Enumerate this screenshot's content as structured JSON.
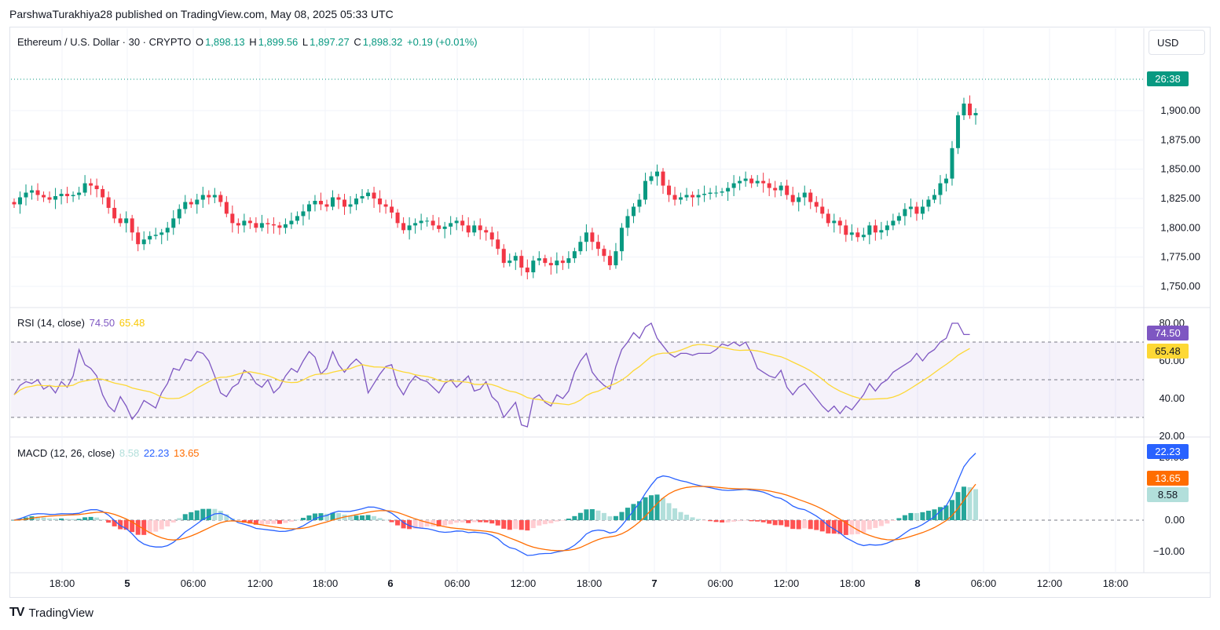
{
  "publisher": "ParshwaTurakhiya28 published on TradingView.com, May 08, 2025 05:33 UTC",
  "main_legend": {
    "symbol": "Ethereum / U.S. Dollar · 30 · CRYPTO",
    "o_label": "O",
    "o": "1,898.13",
    "h_label": "H",
    "h": "1,899.56",
    "l_label": "L",
    "l": "1,897.27",
    "c_label": "C",
    "c": "1,898.32",
    "change": "+0.19 (+0.01%)"
  },
  "currency": "USD",
  "timer_badge": "26:38",
  "price_axis": [
    "1,900.00",
    "1,875.00",
    "1,850.00",
    "1,825.00",
    "1,800.00",
    "1,775.00",
    "1,750.00"
  ],
  "rsi_legend": {
    "label": "RSI (14, close)",
    "rsi": "74.50",
    "ma": "65.48"
  },
  "rsi_axis": [
    "80.00",
    "60.00",
    "40.00",
    "20.00"
  ],
  "rsi_badges": {
    "rsi": "74.50",
    "ma": "65.48"
  },
  "macd_legend": {
    "label": "MACD (12, 26, close)",
    "hist": "8.58",
    "macd": "22.23",
    "signal": "13.65"
  },
  "macd_axis": [
    "20.00",
    "0.00",
    "−10.00"
  ],
  "macd_badges": {
    "macd": "22.23",
    "signal": "13.65",
    "hist": "8.58"
  },
  "time_axis": [
    "18:00",
    "5",
    "06:00",
    "12:00",
    "18:00",
    "6",
    "06:00",
    "12:00",
    "18:00",
    "7",
    "06:00",
    "12:00",
    "18:00",
    "8",
    "06:00",
    "12:00",
    "18:00"
  ],
  "footer": "TradingView",
  "colors": {
    "up": "#089981",
    "down": "#f23645",
    "rsi": "#7e57c2",
    "rsi_ma": "#fdd835",
    "macd": "#2962ff",
    "signal": "#ff6d00",
    "hist_up_strong": "#26a69a",
    "hist_up_weak": "#b2dfdb",
    "hist_down_strong": "#ff5252",
    "hist_down_weak": "#ffcdd2"
  },
  "chart_data": {
    "type": "candlestick",
    "interval": "30m",
    "ylim": [
      1745,
      1910
    ],
    "close": [
      1820,
      1826,
      1830,
      1832,
      1828,
      1826,
      1824,
      1827,
      1829,
      1827,
      1828,
      1830,
      1838,
      1836,
      1833,
      1826,
      1817,
      1808,
      1804,
      1808,
      1796,
      1786,
      1790,
      1793,
      1794,
      1796,
      1800,
      1808,
      1816,
      1822,
      1820,
      1824,
      1828,
      1826,
      1828,
      1822,
      1812,
      1804,
      1802,
      1806,
      1804,
      1800,
      1804,
      1803,
      1802,
      1800,
      1803,
      1806,
      1810,
      1814,
      1820,
      1823,
      1820,
      1818,
      1826,
      1824,
      1818,
      1820,
      1825,
      1827,
      1830,
      1825,
      1820,
      1818,
      1813,
      1804,
      1798,
      1802,
      1804,
      1806,
      1806,
      1802,
      1799,
      1801,
      1804,
      1806,
      1802,
      1796,
      1802,
      1798,
      1796,
      1790,
      1782,
      1770,
      1772,
      1776,
      1766,
      1762,
      1772,
      1774,
      1770,
      1768,
      1772,
      1770,
      1774,
      1780,
      1788,
      1796,
      1788,
      1782,
      1776,
      1768,
      1780,
      1800,
      1810,
      1818,
      1824,
      1840,
      1844,
      1848,
      1836,
      1828,
      1824,
      1826,
      1828,
      1826,
      1828,
      1829,
      1830,
      1830,
      1831,
      1834,
      1838,
      1840,
      1842,
      1838,
      1840,
      1838,
      1834,
      1832,
      1836,
      1828,
      1822,
      1826,
      1830,
      1822,
      1818,
      1812,
      1804,
      1806,
      1802,
      1794,
      1796,
      1792,
      1794,
      1802,
      1796,
      1798,
      1802,
      1806,
      1810,
      1816,
      1818,
      1812,
      1818,
      1824,
      1828,
      1838,
      1842,
      1868,
      1896,
      1906,
      1896,
      1898
    ],
    "rsi": [
      42,
      47,
      49,
      48,
      50,
      45,
      47,
      43,
      49,
      46,
      52,
      66,
      58,
      56,
      52,
      42,
      36,
      33,
      41,
      36,
      29,
      33,
      39,
      37,
      35,
      43,
      48,
      56,
      55,
      61,
      60,
      65,
      64,
      60,
      52,
      43,
      41,
      46,
      48,
      55,
      53,
      48,
      46,
      50,
      43,
      46,
      52,
      56,
      54,
      60,
      65,
      62,
      53,
      56,
      65,
      58,
      54,
      58,
      61,
      58,
      43,
      48,
      53,
      57,
      58,
      47,
      42,
      48,
      52,
      50,
      49,
      46,
      43,
      48,
      50,
      46,
      49,
      52,
      44,
      45,
      49,
      41,
      38,
      30,
      34,
      38,
      26,
      25,
      40,
      42,
      38,
      36,
      42,
      40,
      44,
      54,
      60,
      64,
      54,
      50,
      47,
      45,
      57,
      66,
      70,
      75,
      72,
      78,
      80,
      72,
      68,
      64,
      62,
      64,
      64,
      63,
      64,
      64,
      64,
      66,
      69,
      68,
      70,
      68,
      70,
      64,
      56,
      54,
      52,
      51,
      55,
      46,
      42,
      46,
      48,
      44,
      40,
      36,
      33,
      36,
      32,
      36,
      34,
      38,
      42,
      48,
      44,
      48,
      50,
      54,
      56,
      58,
      60,
      64,
      60,
      64,
      66,
      70,
      72,
      80,
      80,
      74,
      74
    ]
  }
}
